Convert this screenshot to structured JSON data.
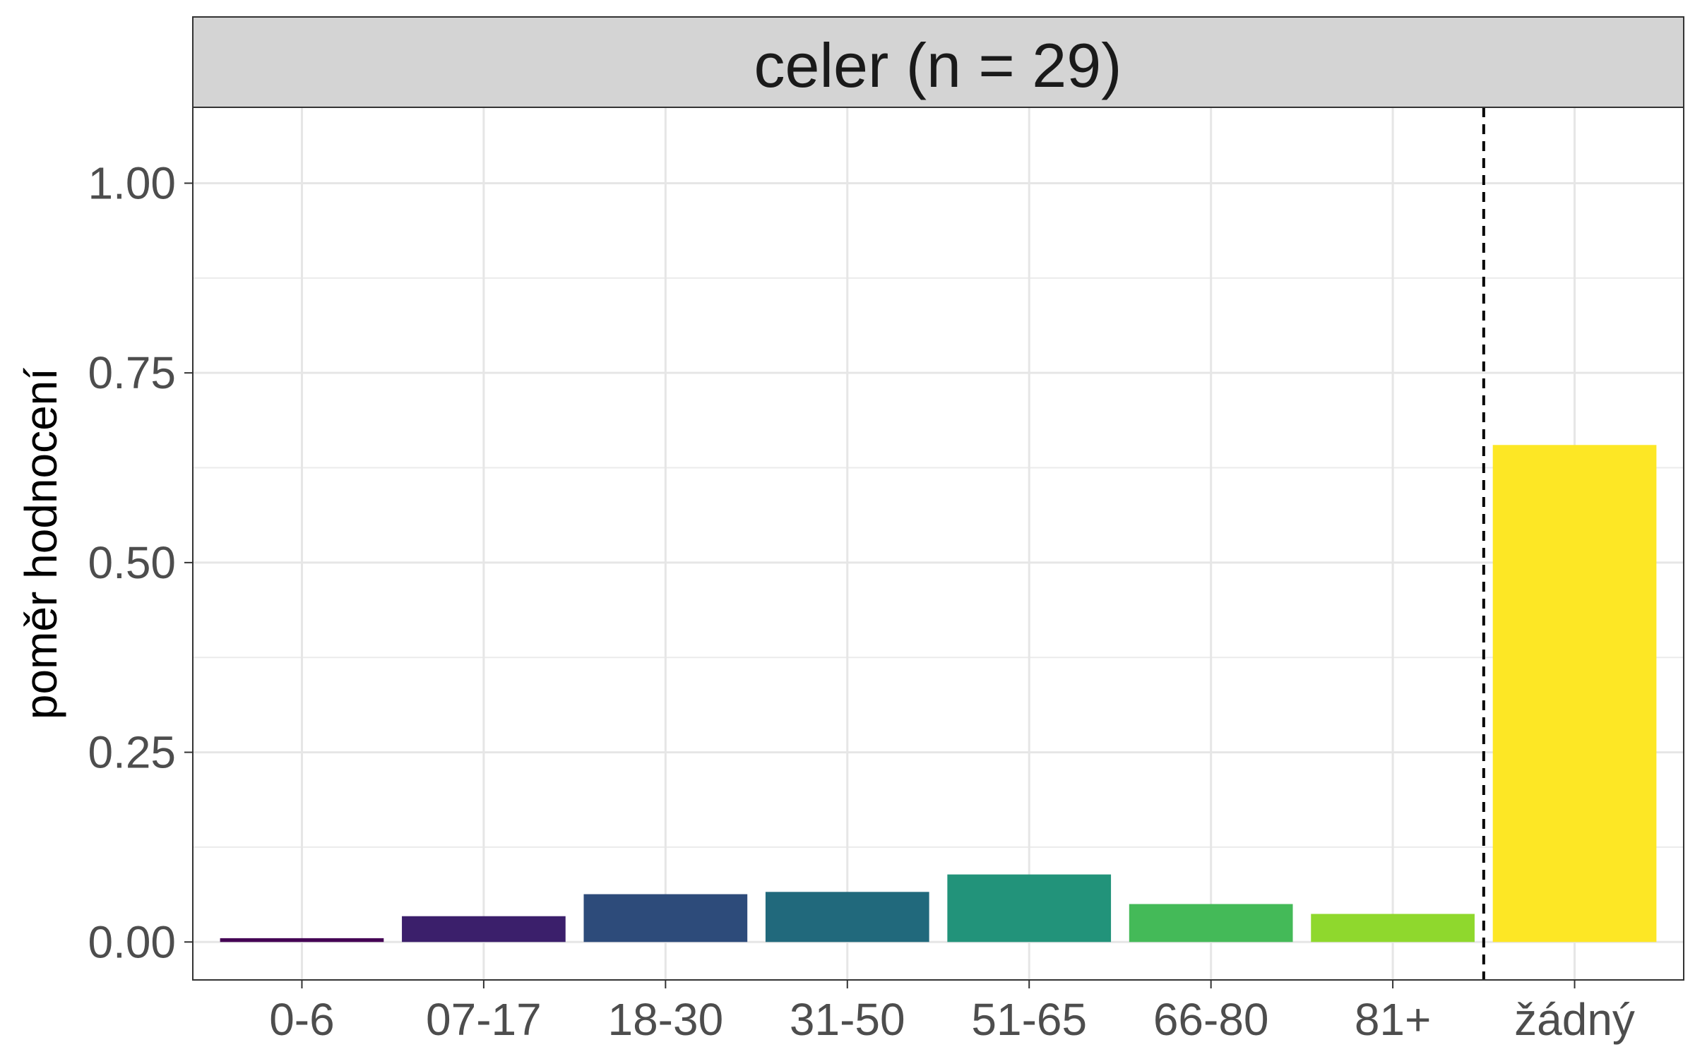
{
  "chart_data": {
    "type": "bar",
    "title": "celer (n = 29)",
    "xlabel": "",
    "ylabel": "poměr hodnocení",
    "categories": [
      "0-6",
      "07-17",
      "18-30",
      "31-50",
      "51-65",
      "66-80",
      "81+",
      "žádný"
    ],
    "values": [
      0.005,
      0.034,
      0.063,
      0.066,
      0.089,
      0.05,
      0.037,
      0.655
    ],
    "colors": [
      "#440154",
      "#3B1F6B",
      "#2D4B7A",
      "#21697C",
      "#22937A",
      "#44BA58",
      "#8FD82D",
      "#FDE725"
    ],
    "ylim": [
      -0.05,
      1.1
    ],
    "yticks": [
      "0.00",
      "0.25",
      "0.50",
      "0.75",
      "1.00"
    ],
    "ytick_values": [
      0,
      0.25,
      0.5,
      0.75,
      1.0
    ],
    "reference_line": {
      "between": [
        "81+",
        "žádný"
      ],
      "style": "dashed"
    },
    "grid": true,
    "legend": "none"
  }
}
